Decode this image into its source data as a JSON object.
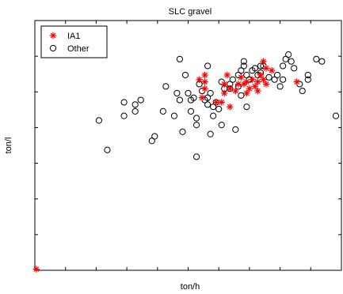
{
  "chart_data": {
    "type": "scatter",
    "title": "SLC gravel",
    "xlabel": "ton/h",
    "ylabel": "ton/l",
    "xlim": [
      0,
      110
    ],
    "ylim": [
      0,
      110
    ],
    "grid": false,
    "legend_position": "top-left",
    "series": [
      {
        "name": "IA1",
        "marker": "asterisk",
        "color": "#ff0000",
        "points": [
          [
            0.5,
            0.5
          ],
          [
            59,
            84
          ],
          [
            61,
            83
          ],
          [
            61,
            80
          ],
          [
            60,
            76
          ],
          [
            65,
            74
          ],
          [
            67,
            74
          ],
          [
            68,
            78
          ],
          [
            68,
            82
          ],
          [
            69,
            86
          ],
          [
            70,
            80
          ],
          [
            72,
            79
          ],
          [
            73,
            82
          ],
          [
            74,
            85
          ],
          [
            75,
            82
          ],
          [
            76,
            78
          ],
          [
            77,
            80
          ],
          [
            78,
            84
          ],
          [
            79,
            81
          ],
          [
            80,
            83
          ],
          [
            81,
            86
          ],
          [
            82,
            92
          ],
          [
            83,
            89
          ],
          [
            85,
            88
          ],
          [
            82,
            84
          ],
          [
            70,
            72
          ],
          [
            80,
            79
          ],
          [
            83,
            82
          ],
          [
            94,
            83
          ],
          [
            76,
            83
          ],
          [
            61,
            86
          ]
        ]
      },
      {
        "name": "Other",
        "marker": "circle",
        "color": "#000000",
        "points": [
          [
            23,
            66
          ],
          [
            26,
            53
          ],
          [
            32,
            68
          ],
          [
            32,
            74
          ],
          [
            36,
            70
          ],
          [
            36,
            73
          ],
          [
            38,
            75
          ],
          [
            42,
            57
          ],
          [
            43,
            59
          ],
          [
            46,
            70
          ],
          [
            47,
            81
          ],
          [
            50,
            68
          ],
          [
            51,
            78
          ],
          [
            52,
            75
          ],
          [
            54,
            86
          ],
          [
            55,
            78
          ],
          [
            56,
            75
          ],
          [
            57,
            76
          ],
          [
            58,
            67
          ],
          [
            58,
            50
          ],
          [
            59,
            82
          ],
          [
            60,
            79
          ],
          [
            61,
            75
          ],
          [
            62,
            73
          ],
          [
            62,
            76
          ],
          [
            63,
            78
          ],
          [
            64,
            68
          ],
          [
            64,
            72
          ],
          [
            65,
            74
          ],
          [
            66,
            71
          ],
          [
            67,
            83
          ],
          [
            68,
            80
          ],
          [
            70,
            80
          ],
          [
            70,
            82
          ],
          [
            71,
            84
          ],
          [
            73,
            86
          ],
          [
            74,
            88
          ],
          [
            75,
            90
          ],
          [
            76,
            86
          ],
          [
            77,
            84
          ],
          [
            78,
            88
          ],
          [
            79,
            89
          ],
          [
            80,
            86
          ],
          [
            81,
            87
          ],
          [
            81,
            90
          ],
          [
            82,
            90
          ],
          [
            84,
            85
          ],
          [
            86,
            84
          ],
          [
            87,
            86
          ],
          [
            88,
            81
          ],
          [
            89,
            90
          ],
          [
            89,
            84
          ],
          [
            90,
            93
          ],
          [
            91,
            95
          ],
          [
            92,
            92
          ],
          [
            93,
            89
          ],
          [
            95,
            82
          ],
          [
            96,
            79
          ],
          [
            98,
            86
          ],
          [
            98,
            84
          ],
          [
            101,
            93
          ],
          [
            103,
            92
          ],
          [
            108,
            68
          ],
          [
            74,
            77
          ],
          [
            76,
            72
          ],
          [
            73,
            81
          ],
          [
            63,
            60
          ],
          [
            56,
            70
          ],
          [
            67,
            64
          ],
          [
            52,
            93
          ],
          [
            53,
            61
          ],
          [
            58,
            64
          ],
          [
            62,
            90
          ],
          [
            72,
            62
          ],
          [
            75,
            92
          ]
        ]
      }
    ]
  },
  "legend": {
    "items": [
      "IA1",
      "Other"
    ]
  }
}
